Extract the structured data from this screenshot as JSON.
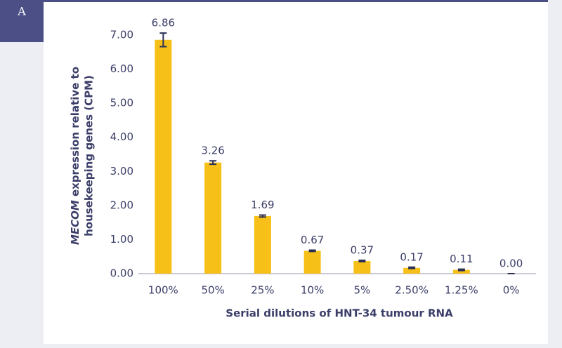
{
  "panel_label": "A",
  "chart_data": {
    "type": "bar",
    "xlabel": "Serial dilutions of HNT-34 tumour RNA",
    "ylabel": {
      "italic": "MECOM",
      "line1": "expression relative to",
      "line2": "housekeeping genes (CPM)"
    },
    "categories": [
      "100%",
      "50%",
      "25%",
      "10%",
      "5%",
      "2.50%",
      "1.25%",
      "0%"
    ],
    "values": [
      6.86,
      3.26,
      1.69,
      0.67,
      0.37,
      0.17,
      0.11,
      0
    ],
    "value_labels": [
      "6.86",
      "3.26",
      "1.69",
      "0.67",
      "0.37",
      "0.17",
      "0.11",
      "0.00"
    ],
    "errors": [
      0.2,
      0.05,
      0.03,
      0.02,
      0.02,
      0.02,
      0.02,
      0
    ],
    "color": "#f6c018",
    "error_color": "#2b2f55",
    "ylim": [
      0,
      7
    ],
    "yticks": [
      {
        "value": 0,
        "label": "0.00"
      },
      {
        "value": 1,
        "label": "1.00"
      },
      {
        "value": 2,
        "label": "2.00"
      },
      {
        "value": 3,
        "label": "3.00"
      },
      {
        "value": 4,
        "label": "4.00"
      },
      {
        "value": 5,
        "label": "5.00"
      },
      {
        "value": 6,
        "label": "6.00"
      },
      {
        "value": 7,
        "label": "7.00"
      }
    ]
  }
}
